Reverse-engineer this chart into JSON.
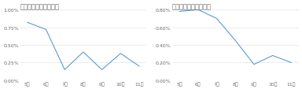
{
  "chart1_title": "急病人発生の誤検知率",
  "chart2_title": "要注意行動の誤検知率",
  "x_labels": [
    "5月",
    "6月",
    "7月",
    "8月",
    "9月",
    "10月",
    "11月"
  ],
  "chart1_values": [
    0.0082,
    0.0072,
    0.0015,
    0.004,
    0.0015,
    0.0038,
    0.002
  ],
  "chart2_values": [
    0.0078,
    0.008,
    0.007,
    0.0045,
    0.0018,
    0.0028,
    0.002
  ],
  "line_color": "#5b9bd5",
  "background_color": "#ffffff",
  "chart1_ylim": [
    0,
    0.01
  ],
  "chart2_ylim": [
    0,
    0.008
  ],
  "chart1_yticks": [
    0.0,
    0.0025,
    0.005,
    0.0075,
    0.01
  ],
  "chart2_yticks": [
    0.0,
    0.002,
    0.004,
    0.006,
    0.008
  ],
  "title_fontsize": 6,
  "tick_fontsize": 4.5,
  "grid_color": "#e0e0e0",
  "text_color": "#666666"
}
